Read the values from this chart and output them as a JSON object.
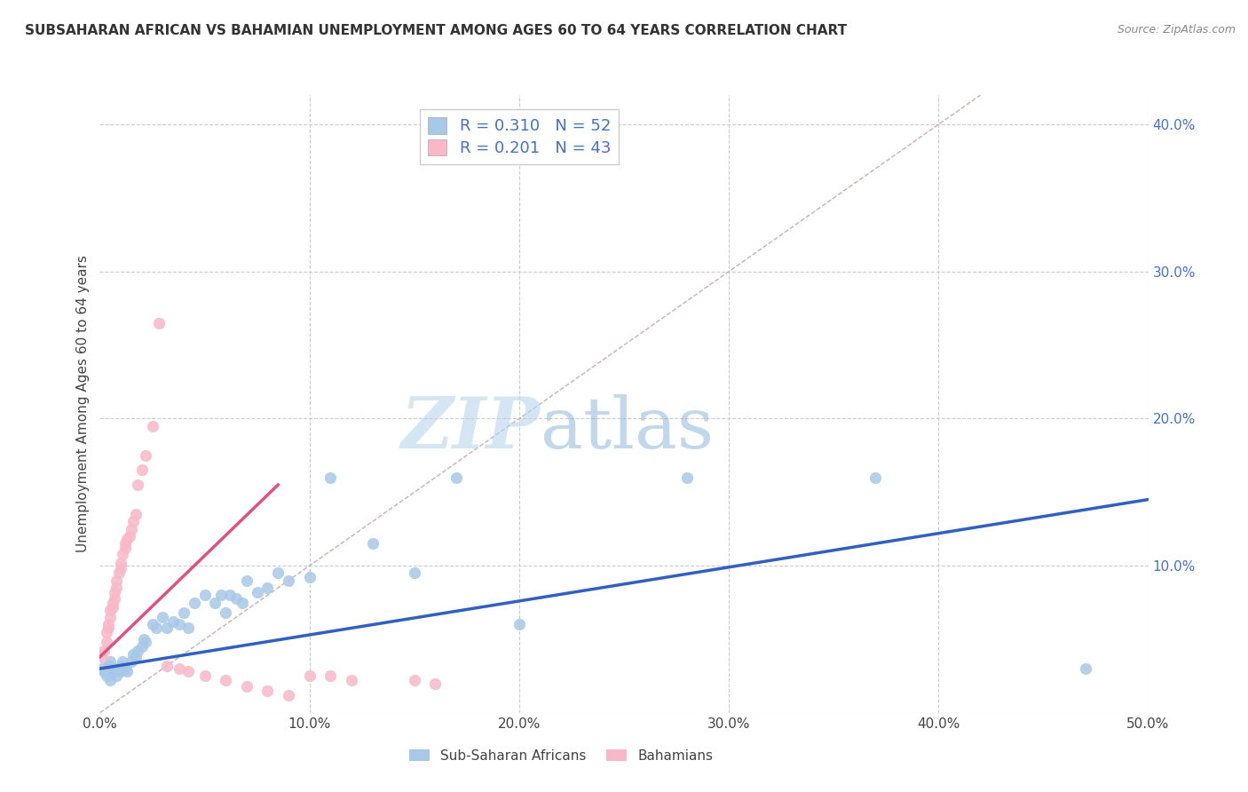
{
  "title": "SUBSAHARAN AFRICAN VS BAHAMIAN UNEMPLOYMENT AMONG AGES 60 TO 64 YEARS CORRELATION CHART",
  "source": "Source: ZipAtlas.com",
  "ylabel": "Unemployment Among Ages 60 to 64 years",
  "xlim": [
    0.0,
    0.5
  ],
  "ylim": [
    0.0,
    0.42
  ],
  "xticks": [
    0.0,
    0.1,
    0.2,
    0.3,
    0.4,
    0.5
  ],
  "xticklabels": [
    "0.0%",
    "10.0%",
    "20.0%",
    "30.0%",
    "40.0%",
    "50.0%"
  ],
  "yticks_right": [
    0.1,
    0.2,
    0.3,
    0.4
  ],
  "yticklabels_right": [
    "10.0%",
    "20.0%",
    "30.0%",
    "40.0%"
  ],
  "legend_r1": "R = 0.310",
  "legend_n1": "N = 52",
  "legend_r2": "R = 0.201",
  "legend_n2": "N = 43",
  "color_blue": "#a8c8e8",
  "color_pink": "#f8b8c8",
  "color_blue_line": "#3060c0",
  "color_pink_line": "#e05080",
  "color_diag": "#c8b0b0",
  "watermark_zip_color": "#c0d8f0",
  "watermark_atlas_color": "#90b8e0",
  "blue_scatter_x": [
    0.001,
    0.002,
    0.003,
    0.004,
    0.005,
    0.005,
    0.006,
    0.007,
    0.008,
    0.009,
    0.01,
    0.01,
    0.011,
    0.012,
    0.013,
    0.015,
    0.016,
    0.017,
    0.018,
    0.02,
    0.021,
    0.022,
    0.025,
    0.027,
    0.03,
    0.032,
    0.035,
    0.038,
    0.04,
    0.042,
    0.045,
    0.05,
    0.055,
    0.058,
    0.06,
    0.062,
    0.065,
    0.068,
    0.07,
    0.075,
    0.08,
    0.085,
    0.09,
    0.1,
    0.11,
    0.13,
    0.15,
    0.17,
    0.2,
    0.28,
    0.37,
    0.47
  ],
  "blue_scatter_y": [
    0.03,
    0.028,
    0.025,
    0.032,
    0.035,
    0.022,
    0.03,
    0.028,
    0.025,
    0.03,
    0.032,
    0.028,
    0.035,
    0.03,
    0.028,
    0.035,
    0.04,
    0.038,
    0.042,
    0.045,
    0.05,
    0.048,
    0.06,
    0.058,
    0.065,
    0.058,
    0.062,
    0.06,
    0.068,
    0.058,
    0.075,
    0.08,
    0.075,
    0.08,
    0.068,
    0.08,
    0.078,
    0.075,
    0.09,
    0.082,
    0.085,
    0.095,
    0.09,
    0.092,
    0.16,
    0.115,
    0.095,
    0.16,
    0.06,
    0.16,
    0.16,
    0.03
  ],
  "pink_scatter_x": [
    0.001,
    0.002,
    0.003,
    0.003,
    0.004,
    0.004,
    0.005,
    0.005,
    0.006,
    0.006,
    0.007,
    0.007,
    0.008,
    0.008,
    0.009,
    0.01,
    0.01,
    0.011,
    0.012,
    0.012,
    0.013,
    0.014,
    0.015,
    0.016,
    0.017,
    0.018,
    0.02,
    0.022,
    0.025,
    0.028,
    0.032,
    0.038,
    0.042,
    0.05,
    0.06,
    0.07,
    0.08,
    0.09,
    0.1,
    0.11,
    0.12,
    0.15,
    0.16
  ],
  "pink_scatter_y": [
    0.038,
    0.042,
    0.048,
    0.055,
    0.058,
    0.06,
    0.065,
    0.07,
    0.072,
    0.075,
    0.078,
    0.082,
    0.085,
    0.09,
    0.095,
    0.098,
    0.102,
    0.108,
    0.112,
    0.115,
    0.118,
    0.12,
    0.125,
    0.13,
    0.135,
    0.155,
    0.165,
    0.175,
    0.195,
    0.265,
    0.032,
    0.03,
    0.028,
    0.025,
    0.022,
    0.018,
    0.015,
    0.012,
    0.025,
    0.025,
    0.022,
    0.022,
    0.02
  ],
  "blue_line_x": [
    0.0,
    0.5
  ],
  "blue_line_y": [
    0.03,
    0.145
  ],
  "pink_line_x": [
    0.0,
    0.085
  ],
  "pink_line_y": [
    0.038,
    0.155
  ],
  "diag_line_x": [
    0.0,
    0.42
  ],
  "diag_line_y": [
    0.0,
    0.42
  ]
}
